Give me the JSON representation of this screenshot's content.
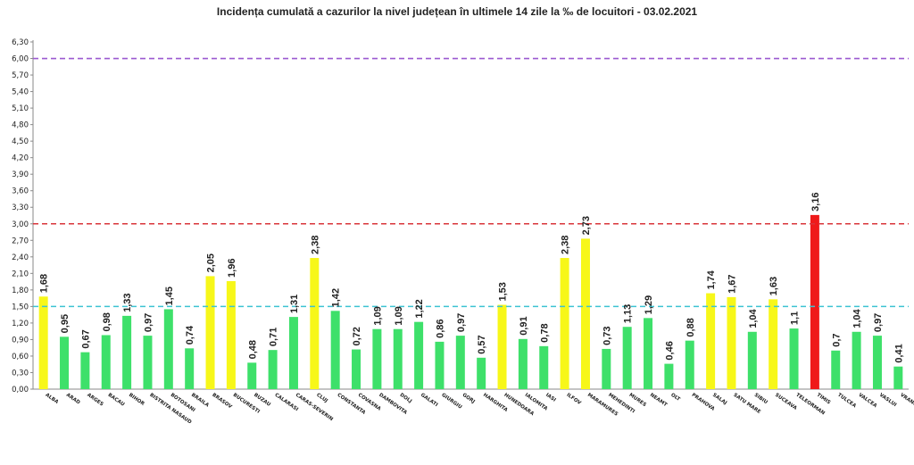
{
  "chart_data": {
    "type": "bar",
    "title": "Incidența cumulată a cazurilor la nivel județean în ultimele 14 zile la ‰ de locuitori - 03.02.2021",
    "xlabel": "",
    "ylabel": "",
    "ylim": [
      0,
      6.3
    ],
    "ytick_values": [
      0,
      0.3,
      0.6,
      0.9,
      1.2,
      1.5,
      1.8,
      2.1,
      2.4,
      2.7,
      3.0,
      3.3,
      3.6,
      3.9,
      4.2,
      4.5,
      4.8,
      5.1,
      5.4,
      5.7,
      6.0,
      6.3
    ],
    "ytick_labels": [
      "0,00",
      "0,30",
      "0,60",
      "0,90",
      "1,20",
      "1,50",
      "1,80",
      "2,10",
      "2,40",
      "2,70",
      "3,00",
      "3,30",
      "3,60",
      "3,90",
      "4,20",
      "4,50",
      "4,80",
      "5,10",
      "5,40",
      "5,70",
      "6,00",
      "6,30"
    ],
    "categories": [
      "ALBA",
      "ARAD",
      "ARGES",
      "BACAU",
      "BIHOR",
      "BISTRITA NASAUD",
      "BOTOSANI",
      "BRAILA",
      "BRASOV",
      "BUCURESTI",
      "BUZAU",
      "CALARASI",
      "CARAS-SEVERIN",
      "CLUJ",
      "CONSTANTA",
      "COVASNA",
      "DAMBOVITA",
      "DOLJ",
      "GALATI",
      "GIURGIU",
      "GORJ",
      "HARGHITA",
      "HUNEDOARA",
      "IALOMITA",
      "IASI",
      "ILFOV",
      "MARAMURES",
      "MEHEDINTI",
      "MURES",
      "NEAMT",
      "OLT",
      "PRAHOVA",
      "SALAJ",
      "SATU MARE",
      "SIBIU",
      "SUCEAVA",
      "TELEORMAN",
      "TIMIS",
      "TULCEA",
      "VALCEA",
      "VASLUI",
      "VRANCEA"
    ],
    "values": [
      1.68,
      0.95,
      0.67,
      0.98,
      1.33,
      0.97,
      1.45,
      0.74,
      2.05,
      1.96,
      0.48,
      0.71,
      1.31,
      2.38,
      1.42,
      0.72,
      1.09,
      1.09,
      1.22,
      0.86,
      0.97,
      0.57,
      1.53,
      0.91,
      0.78,
      2.38,
      2.73,
      0.73,
      1.13,
      1.29,
      0.46,
      0.88,
      1.74,
      1.67,
      1.04,
      1.63,
      1.1,
      3.16,
      0.7,
      1.04,
      0.97,
      0.41
    ],
    "value_labels": [
      "1,68",
      "0,95",
      "0,67",
      "0,98",
      "1,33",
      "0,97",
      "1,45",
      "0,74",
      "2,05",
      "1,96",
      "0,48",
      "0,71",
      "1,31",
      "2,38",
      "1,42",
      "0,72",
      "1,09",
      "1,09",
      "1,22",
      "0,86",
      "0,97",
      "0,57",
      "1,53",
      "0,91",
      "0,78",
      "2,38",
      "2,73",
      "0,73",
      "1,13",
      "1,29",
      "0,46",
      "0,88",
      "1,74",
      "1,67",
      "1,04",
      "1,63",
      "1,1",
      "3,16",
      "0,7",
      "1,04",
      "0,97",
      "0,41"
    ],
    "thresholds": [
      {
        "value": 1.5,
        "color": "#3cc3d2"
      },
      {
        "value": 3.0,
        "color": "#d9343a"
      },
      {
        "value": 6.0,
        "color": "#9b59d0"
      }
    ],
    "colors": {
      "low": "#3ee06a",
      "medium": "#f7f719",
      "high": "#ef1a1a"
    }
  }
}
